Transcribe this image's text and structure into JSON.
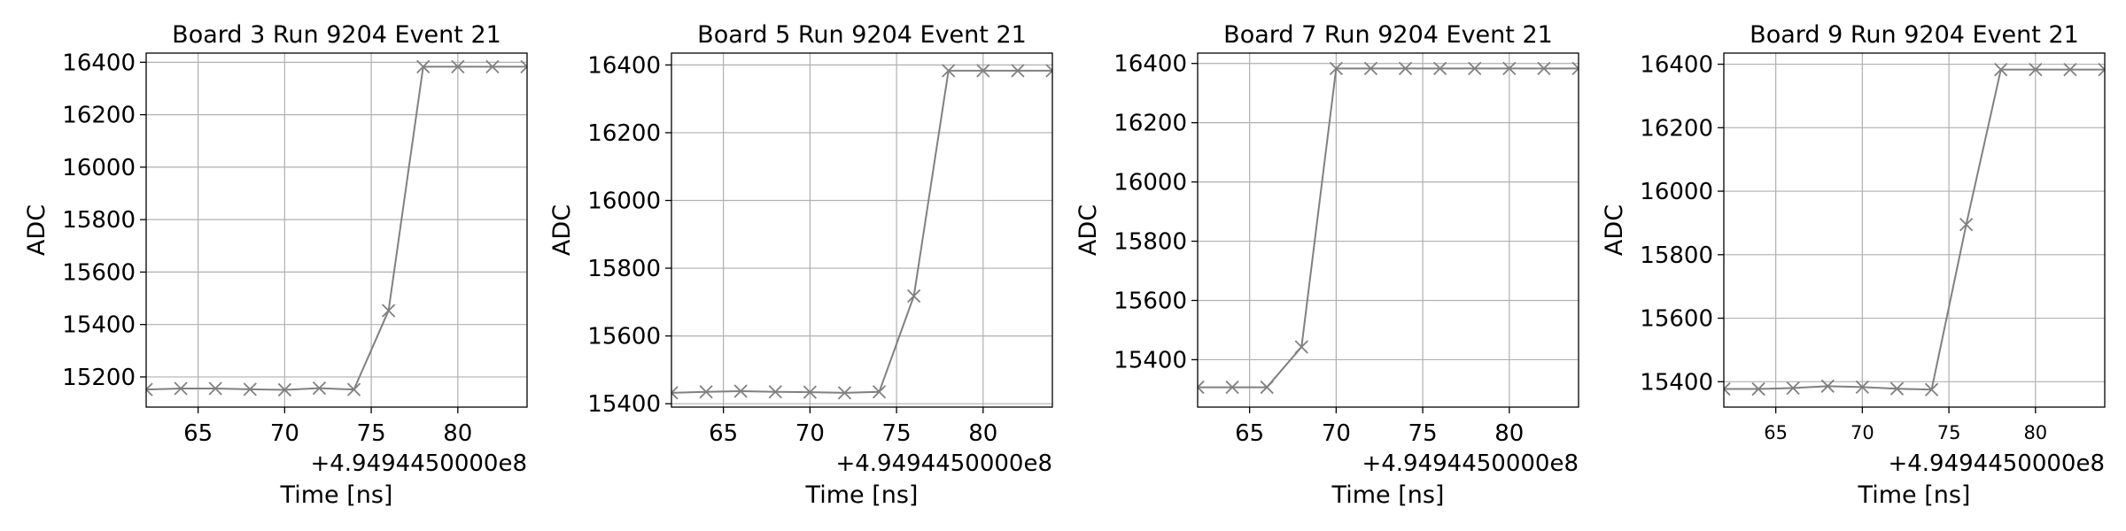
{
  "chart_data": [
    {
      "type": "line",
      "title": "Board 3 Run 9204 Event 21",
      "xlabel": "Time [ns]",
      "ylabel": "ADC",
      "x_offset_label": "+4.9494450000e8",
      "xlim": [
        62,
        84
      ],
      "ylim": [
        15085,
        16435
      ],
      "xticks": [
        65,
        70,
        75,
        80
      ],
      "xtick_labels": [
        "65",
        "70",
        "75",
        "80"
      ],
      "xtick_small": false,
      "yticks": [
        15200,
        15400,
        15600,
        15800,
        16000,
        16200,
        16400
      ],
      "ytick_labels": [
        "15200",
        "15400",
        "15600",
        "15800",
        "16000",
        "16200",
        "16400"
      ],
      "grid": true,
      "series": [
        {
          "color": "#808080",
          "marker": "x",
          "x": [
            62,
            64,
            66,
            68,
            70,
            72,
            74,
            76,
            78,
            80,
            82,
            84
          ],
          "y": [
            15152,
            15156,
            15156,
            15153,
            15151,
            15157,
            15152,
            15453,
            16383,
            16383,
            16383,
            16383
          ]
        }
      ]
    },
    {
      "type": "line",
      "title": "Board 5 Run 9204 Event 21",
      "xlabel": "Time [ns]",
      "ylabel": "ADC",
      "x_offset_label": "+4.9494450000e8",
      "xlim": [
        62,
        84
      ],
      "ylim": [
        15390,
        16435
      ],
      "xticks": [
        65,
        70,
        75,
        80
      ],
      "xtick_labels": [
        "65",
        "70",
        "75",
        "80"
      ],
      "xtick_small": false,
      "yticks": [
        15400,
        15600,
        15800,
        16000,
        16200,
        16400
      ],
      "ytick_labels": [
        "15400",
        "15600",
        "15800",
        "16000",
        "16200",
        "16400"
      ],
      "grid": true,
      "series": [
        {
          "color": "#808080",
          "marker": "x",
          "x": [
            62,
            64,
            66,
            68,
            70,
            72,
            74,
            76,
            78,
            80,
            82,
            84
          ],
          "y": [
            15432,
            15435,
            15437,
            15435,
            15434,
            15432,
            15435,
            15718,
            16383,
            16383,
            16383,
            16383
          ]
        }
      ]
    },
    {
      "type": "line",
      "title": "Board 7 Run 9204 Event 21",
      "xlabel": "Time [ns]",
      "ylabel": "ADC",
      "x_offset_label": "+4.9494450000e8",
      "xlim": [
        62,
        84
      ],
      "ylim": [
        15240,
        16435
      ],
      "xticks": [
        65,
        70,
        75,
        80
      ],
      "xtick_labels": [
        "65",
        "70",
        "75",
        "80"
      ],
      "xtick_small": false,
      "yticks": [
        15400,
        15600,
        15800,
        16000,
        16200,
        16400
      ],
      "ytick_labels": [
        "15400",
        "15600",
        "15800",
        "16000",
        "16200",
        "16400"
      ],
      "grid": true,
      "series": [
        {
          "color": "#808080",
          "marker": "x",
          "x": [
            62,
            64,
            66,
            68,
            70,
            72,
            74,
            76,
            78,
            80,
            82,
            84
          ],
          "y": [
            15307,
            15307,
            15307,
            15443,
            16383,
            16383,
            16383,
            16383,
            16383,
            16383,
            16383,
            16383
          ]
        }
      ]
    },
    {
      "type": "line",
      "title": "Board 9 Run 9204 Event 21",
      "xlabel": "Time [ns]",
      "ylabel": "ADC",
      "x_offset_label": "+4.9494450000e8",
      "xlim": [
        62,
        84
      ],
      "ylim": [
        15320,
        16435
      ],
      "xticks": [
        65,
        70,
        75,
        80
      ],
      "xtick_labels": [
        "65",
        "70",
        "75",
        "80"
      ],
      "xtick_small": true,
      "yticks": [
        15400,
        15600,
        15800,
        16000,
        16200,
        16400
      ],
      "ytick_labels": [
        "15400",
        "15600",
        "15800",
        "16000",
        "16200",
        "16400"
      ],
      "grid": true,
      "series": [
        {
          "color": "#808080",
          "marker": "x",
          "x": [
            62,
            64,
            66,
            68,
            70,
            72,
            74,
            76,
            78,
            80,
            82,
            84
          ],
          "y": [
            15377,
            15377,
            15380,
            15386,
            15383,
            15378,
            15375,
            15895,
            16383,
            16383,
            16383,
            16383
          ]
        }
      ]
    }
  ]
}
